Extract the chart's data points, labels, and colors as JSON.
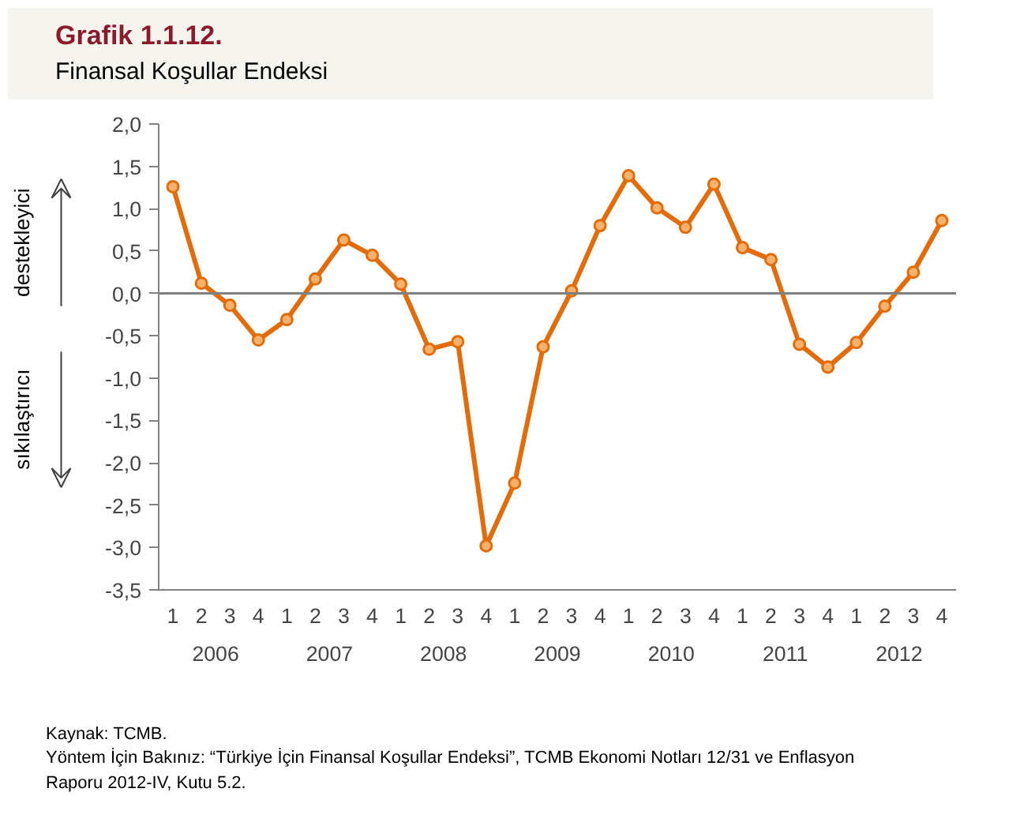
{
  "chart_data": {
    "type": "line",
    "title": "Grafik 1.1.12.",
    "subtitle": "Finansal Koşullar Endeksi",
    "categories": [
      "1",
      "2",
      "3",
      "4",
      "1",
      "2",
      "3",
      "4",
      "1",
      "2",
      "3",
      "4",
      "1",
      "2",
      "3",
      "4",
      "1",
      "2",
      "3",
      "4",
      "1",
      "2",
      "3",
      "4",
      "1",
      "2",
      "3",
      "4"
    ],
    "series": [
      {
        "color": "#e36c09",
        "values": [
          1.26,
          0.12,
          -0.14,
          -0.55,
          -0.31,
          0.17,
          0.63,
          0.45,
          0.11,
          -0.66,
          -0.57,
          -2.98,
          -2.24,
          -0.63,
          0.03,
          0.8,
          1.39,
          1.01,
          0.78,
          1.29,
          0.54,
          0.4,
          -0.6,
          -0.87,
          -0.58,
          -0.15,
          0.25,
          0.86
        ]
      }
    ],
    "ylim": [
      -3.5,
      2.0
    ],
    "yticks": [
      {
        "value": -3.5,
        "label": "-3,5"
      },
      {
        "value": -3.0,
        "label": "-3,0"
      },
      {
        "value": -2.5,
        "label": "-2,5"
      },
      {
        "value": -2.0,
        "label": "-2,0"
      },
      {
        "value": -1.5,
        "label": "-1,5"
      },
      {
        "value": -1.0,
        "label": "-1,0"
      },
      {
        "value": -0.5,
        "label": "-0,5"
      },
      {
        "value": 0.0,
        "label": "0,0"
      },
      {
        "value": 0.5,
        "label": "0,5"
      },
      {
        "value": 1.0,
        "label": "1,0"
      },
      {
        "value": 1.5,
        "label": "1,5"
      },
      {
        "value": 2.0,
        "label": "2,0"
      }
    ],
    "ref_lines": [
      {
        "axis": "y",
        "value": 0,
        "color": "#808080"
      }
    ],
    "annotations": [
      "destekleyici",
      "sıkılaştırıcı",
      "2006",
      "2007",
      "2008",
      "2009",
      "2010",
      "2011",
      "2012",
      "Kaynak: TCMB.",
      "Yöntem İçin Bakınız: “Türkiye İçin Finansal Koşullar Endeksi”, TCMB Ekonomi Notları 12/31 ve Enflasyon Raporu 2012-IV, Kutu 5.2."
    ],
    "marker": "circle",
    "grid": false
  }
}
